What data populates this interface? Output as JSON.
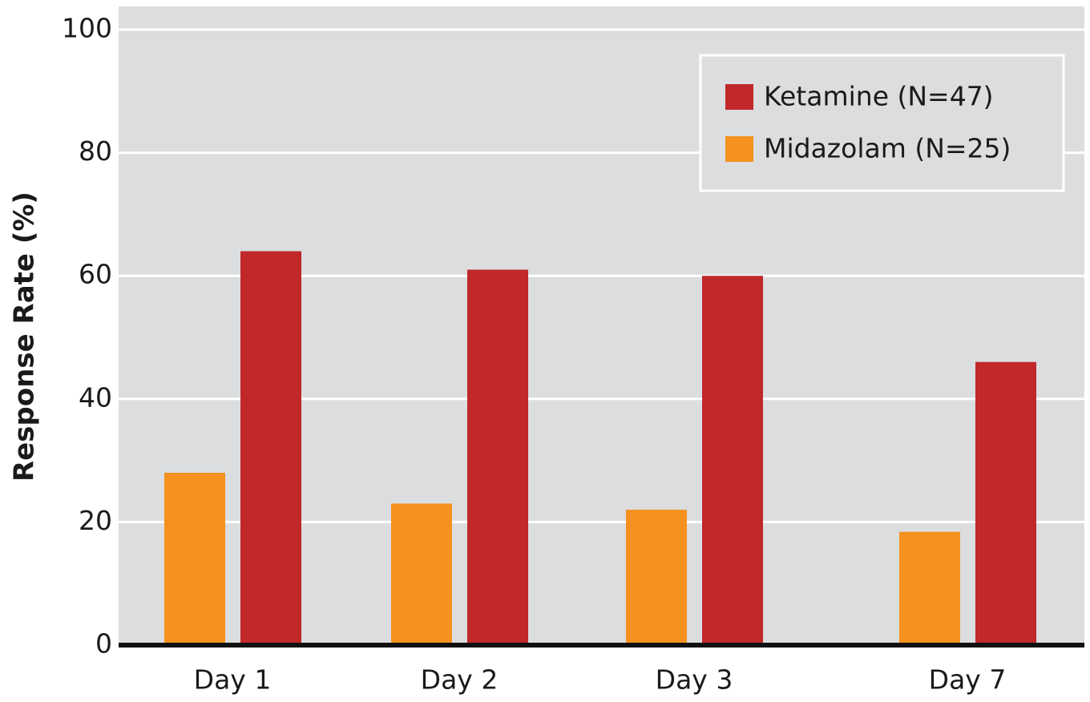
{
  "chart_data": {
    "type": "bar",
    "y_label": "Response Rate (%)",
    "categories": [
      "Day 1",
      "Day 2",
      "Day 3",
      "Day 7"
    ],
    "series": [
      {
        "name": "Ketamine (N=47)",
        "color": "#c0282a",
        "values": [
          64,
          61,
          60,
          46
        ]
      },
      {
        "name": "Midazolam (N=25)",
        "color": "#f4911f",
        "values": [
          28,
          23,
          22,
          18.4
        ]
      }
    ],
    "ylim": [
      0,
      100
    ],
    "yticks": [
      0,
      20,
      40,
      60,
      80,
      100
    ],
    "grid": true,
    "legend": "upper right"
  }
}
